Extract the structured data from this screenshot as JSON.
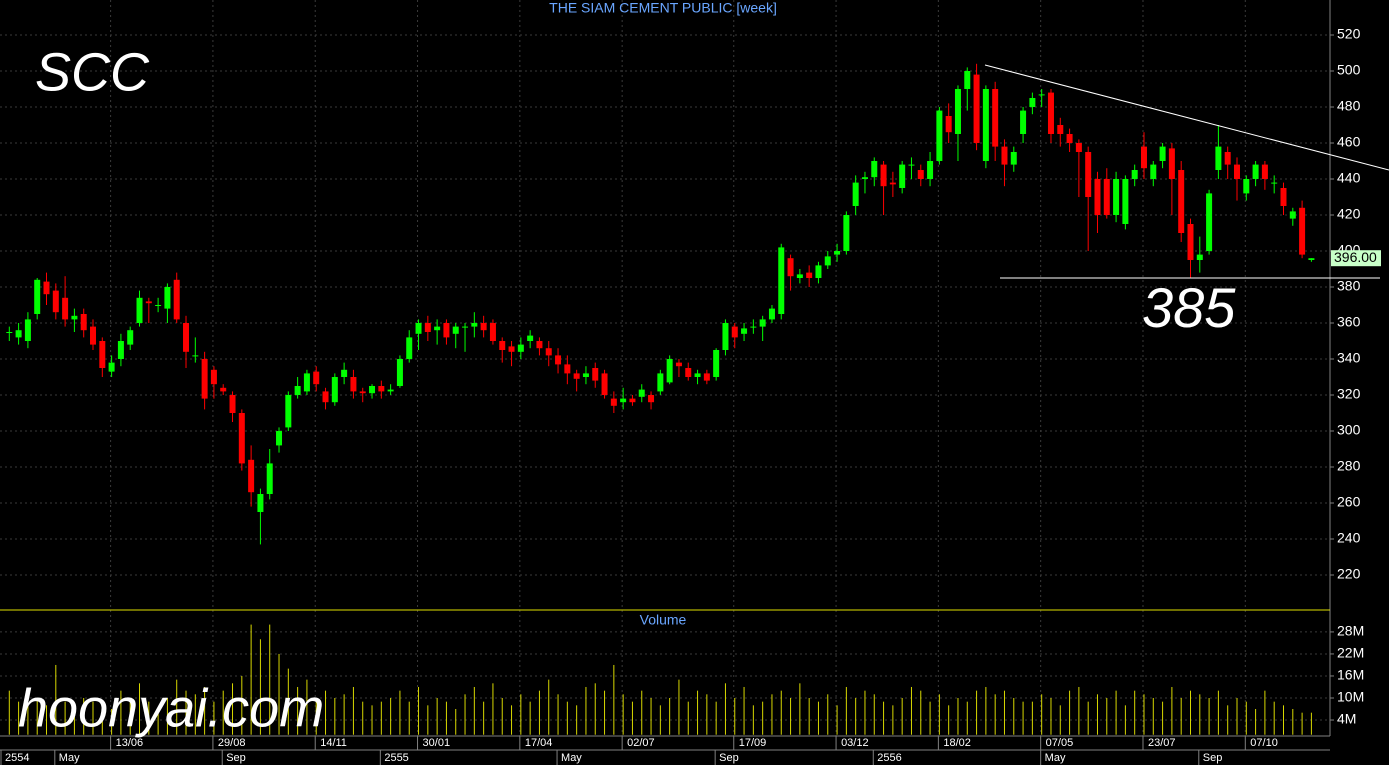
{
  "chart_data": [
    {
      "type": "candlestick",
      "title": "THE SIAM CEMENT PUBLIC [week]",
      "annotations": [
        "SCC",
        "385"
      ],
      "last_price": {
        "value": 396,
        "label": "396.00"
      },
      "up_color": "#00ff00",
      "down_color": "#ff0000",
      "grid": true,
      "xlim": [
        -1,
        142
      ],
      "ylim": [
        200.56,
        539.44
      ],
      "yticks": [
        220,
        240,
        260,
        280,
        300,
        320,
        340,
        360,
        380,
        400,
        420,
        440,
        460,
        480,
        500,
        520
      ],
      "xticks": [
        {
          "value": 11,
          "label": "13/06"
        },
        {
          "value": 22,
          "label": "29/08"
        },
        {
          "value": 33,
          "label": "14/11"
        },
        {
          "value": 44,
          "label": "30/01"
        },
        {
          "value": 55,
          "label": "17/04"
        },
        {
          "value": 66,
          "label": "02/07"
        },
        {
          "value": 78,
          "label": "17/09"
        },
        {
          "value": 89,
          "label": "03/12"
        },
        {
          "value": 100,
          "label": "18/02"
        },
        {
          "value": 111,
          "label": "07/05"
        },
        {
          "value": 122,
          "label": "23/07"
        },
        {
          "value": 133,
          "label": "07/10"
        }
      ],
      "xticks_secondary": [
        {
          "value": -1,
          "label": "2554"
        },
        {
          "value": 5,
          "label": "May"
        },
        {
          "value": 23,
          "label": "Sep"
        },
        {
          "value": 40,
          "label": "2555"
        },
        {
          "value": 59,
          "label": "May"
        },
        {
          "value": 76,
          "label": "Sep"
        },
        {
          "value": 93,
          "label": "2556"
        },
        {
          "value": 111,
          "label": "May"
        },
        {
          "value": 128,
          "label": "Sep"
        }
      ],
      "ohlc": [
        [
          355,
          358,
          350,
          355
        ],
        [
          352,
          360,
          348,
          356
        ],
        [
          350,
          366,
          346,
          362
        ],
        [
          365,
          385,
          362,
          384
        ],
        [
          383,
          388,
          370,
          376
        ],
        [
          378,
          382,
          362,
          366
        ],
        [
          374,
          386,
          358,
          362
        ],
        [
          362,
          368,
          355,
          364
        ],
        [
          365,
          368,
          352,
          356
        ],
        [
          358,
          362,
          345,
          348
        ],
        [
          350,
          352,
          330,
          335
        ],
        [
          333,
          342,
          330,
          338
        ],
        [
          340,
          354,
          336,
          350
        ],
        [
          348,
          358,
          345,
          356
        ],
        [
          360,
          378,
          358,
          374
        ],
        [
          372,
          374,
          360,
          371
        ],
        [
          370,
          374,
          366,
          370
        ],
        [
          368,
          382,
          360,
          380
        ],
        [
          384,
          388,
          360,
          362
        ],
        [
          360,
          364,
          335,
          344
        ],
        [
          342,
          352,
          338,
          342
        ],
        [
          340,
          344,
          312,
          318
        ],
        [
          334,
          336,
          318,
          326
        ],
        [
          324,
          326,
          320,
          322
        ],
        [
          320,
          322,
          305,
          310
        ],
        [
          310,
          312,
          278,
          282
        ],
        [
          284,
          292,
          258,
          266
        ],
        [
          255,
          268,
          237,
          265
        ],
        [
          265,
          290,
          262,
          282
        ],
        [
          292,
          302,
          288,
          300
        ],
        [
          302,
          322,
          300,
          320
        ],
        [
          320,
          330,
          318,
          325
        ],
        [
          322,
          334,
          320,
          332
        ],
        [
          333,
          336,
          322,
          326
        ],
        [
          322,
          324,
          312,
          316
        ],
        [
          316,
          332,
          314,
          330
        ],
        [
          330,
          338,
          326,
          334
        ],
        [
          330,
          334,
          318,
          322
        ],
        [
          322,
          324,
          316,
          321
        ],
        [
          321,
          326,
          318,
          325
        ],
        [
          325,
          328,
          318,
          322
        ],
        [
          322,
          326,
          320,
          323
        ],
        [
          325,
          342,
          324,
          340
        ],
        [
          340,
          356,
          338,
          352
        ],
        [
          354,
          362,
          345,
          360
        ],
        [
          360,
          364,
          350,
          355
        ],
        [
          356,
          362,
          348,
          358
        ],
        [
          360,
          362,
          348,
          352
        ],
        [
          354,
          360,
          346,
          358
        ],
        [
          358,
          360,
          344,
          358
        ],
        [
          358,
          366,
          352,
          360
        ],
        [
          360,
          364,
          352,
          356
        ],
        [
          360,
          362,
          348,
          350
        ],
        [
          350,
          352,
          338,
          345
        ],
        [
          347,
          350,
          336,
          344
        ],
        [
          344,
          352,
          340,
          348
        ],
        [
          350,
          356,
          346,
          353
        ],
        [
          350,
          352,
          342,
          346
        ],
        [
          346,
          350,
          336,
          342
        ],
        [
          342,
          346,
          332,
          337
        ],
        [
          337,
          342,
          326,
          332
        ],
        [
          332,
          334,
          322,
          329
        ],
        [
          330,
          336,
          326,
          332
        ],
        [
          335,
          338,
          324,
          328
        ],
        [
          332,
          334,
          318,
          320
        ],
        [
          318,
          322,
          310,
          314
        ],
        [
          316,
          324,
          312,
          318
        ],
        [
          318,
          320,
          314,
          316
        ],
        [
          319,
          326,
          316,
          323
        ],
        [
          320,
          322,
          312,
          316
        ],
        [
          322,
          334,
          320,
          332
        ],
        [
          327,
          342,
          326,
          340
        ],
        [
          338,
          340,
          330,
          336
        ],
        [
          335,
          338,
          328,
          330
        ],
        [
          330,
          334,
          326,
          332
        ],
        [
          332,
          334,
          326,
          328
        ],
        [
          330,
          346,
          328,
          345
        ],
        [
          345,
          362,
          342,
          360
        ],
        [
          358,
          360,
          346,
          352
        ],
        [
          354,
          360,
          350,
          357
        ],
        [
          358,
          362,
          354,
          358
        ],
        [
          358,
          364,
          350,
          362
        ],
        [
          362,
          370,
          360,
          368
        ],
        [
          365,
          404,
          362,
          402
        ],
        [
          396,
          398,
          378,
          386
        ],
        [
          385,
          390,
          382,
          387
        ],
        [
          388,
          392,
          380,
          385
        ],
        [
          385,
          394,
          382,
          392
        ],
        [
          392,
          400,
          390,
          397
        ],
        [
          398,
          404,
          394,
          400
        ],
        [
          400,
          422,
          398,
          420
        ],
        [
          425,
          442,
          420,
          438
        ],
        [
          440,
          444,
          432,
          441
        ],
        [
          441,
          452,
          436,
          450
        ],
        [
          448,
          450,
          420,
          436
        ],
        [
          438,
          444,
          430,
          437
        ],
        [
          435,
          450,
          432,
          448
        ],
        [
          448,
          452,
          440,
          448
        ],
        [
          445,
          448,
          436,
          440
        ],
        [
          440,
          455,
          436,
          450
        ],
        [
          450,
          480,
          448,
          478
        ],
        [
          475,
          482,
          460,
          466
        ],
        [
          465,
          492,
          450,
          490
        ],
        [
          490,
          502,
          478,
          500
        ],
        [
          498,
          504,
          456,
          460
        ],
        [
          450,
          492,
          446,
          490
        ],
        [
          490,
          494,
          450,
          458
        ],
        [
          458,
          462,
          436,
          448
        ],
        [
          448,
          458,
          444,
          455
        ],
        [
          465,
          480,
          460,
          478
        ],
        [
          480,
          488,
          476,
          485
        ],
        [
          487,
          490,
          480,
          487
        ],
        [
          488,
          490,
          460,
          465
        ],
        [
          470,
          474,
          458,
          465
        ],
        [
          465,
          468,
          455,
          460
        ],
        [
          460,
          462,
          430,
          455
        ],
        [
          455,
          458,
          400,
          430
        ],
        [
          440,
          444,
          410,
          420
        ],
        [
          440,
          446,
          418,
          420
        ],
        [
          420,
          444,
          416,
          440
        ],
        [
          415,
          442,
          412,
          440
        ],
        [
          440,
          448,
          436,
          445
        ],
        [
          458,
          466,
          440,
          446
        ],
        [
          440,
          450,
          436,
          448
        ],
        [
          450,
          460,
          446,
          458
        ],
        [
          457,
          460,
          420,
          440
        ],
        [
          445,
          450,
          405,
          410
        ],
        [
          415,
          418,
          385,
          395
        ],
        [
          395,
          408,
          388,
          398
        ],
        [
          400,
          434,
          398,
          432
        ],
        [
          445,
          470,
          440,
          458
        ],
        [
          455,
          458,
          440,
          448
        ],
        [
          448,
          452,
          428,
          440
        ],
        [
          432,
          442,
          428,
          440
        ],
        [
          440,
          450,
          436,
          448
        ],
        [
          448,
          450,
          434,
          440
        ],
        [
          438,
          442,
          432,
          438
        ],
        [
          435,
          438,
          420,
          425
        ],
        [
          418,
          424,
          414,
          422
        ],
        [
          424,
          428,
          396,
          398
        ],
        [
          395,
          396,
          394,
          396
        ]
      ]
    },
    {
      "type": "bar",
      "title": "Volume",
      "color": "#d8d800",
      "ylim": [
        0,
        33.7
      ],
      "yticks": [
        {
          "value": 4,
          "label": "4M"
        },
        {
          "value": 10,
          "label": "10M"
        },
        {
          "value": 16,
          "label": "16M"
        },
        {
          "value": 22,
          "label": "22M"
        },
        {
          "value": 28,
          "label": "28M"
        }
      ],
      "values": [
        12,
        9,
        8,
        10,
        8,
        19,
        9,
        7,
        10,
        9,
        8,
        7,
        12,
        9,
        14,
        9,
        7,
        10,
        15,
        12,
        11,
        13,
        9,
        12,
        14,
        16,
        30,
        26,
        30,
        22,
        18,
        13,
        15,
        9,
        12,
        10,
        11,
        13,
        9,
        8,
        9,
        10,
        12,
        9,
        13,
        8,
        10,
        9,
        7,
        11,
        13,
        9,
        14,
        10,
        8,
        11,
        9,
        12,
        15,
        11,
        9,
        8,
        13,
        14,
        12,
        19,
        11,
        9,
        12,
        10,
        8,
        10,
        15,
        9,
        12,
        11,
        9,
        14,
        10,
        13,
        8,
        9,
        11,
        12,
        10,
        14,
        10,
        9,
        11,
        8,
        13,
        10,
        12,
        11,
        9,
        8,
        10,
        13,
        12,
        9,
        11,
        8,
        10,
        9,
        12,
        13,
        11,
        12,
        10,
        9,
        9,
        11,
        10,
        8,
        12,
        13,
        9,
        11,
        10,
        12,
        8,
        12,
        11,
        10,
        9,
        13,
        10,
        12,
        11,
        10,
        12,
        8,
        10,
        9,
        7,
        12,
        9,
        8,
        7,
        6,
        6
      ]
    }
  ],
  "watermark": "hoonyai.com"
}
